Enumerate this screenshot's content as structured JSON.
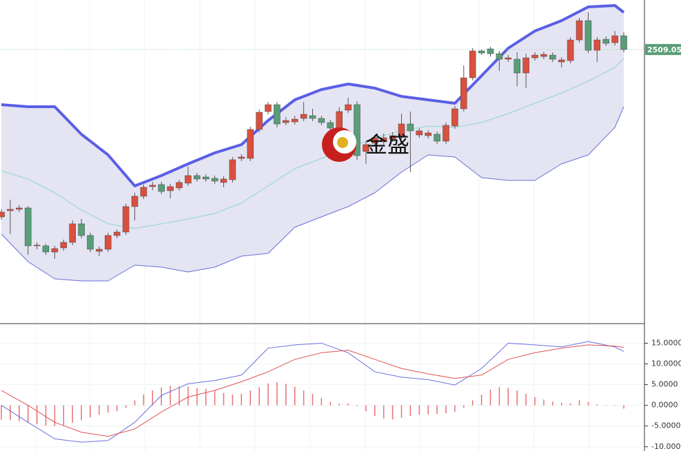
{
  "chart_data": [
    {
      "type": "candlestick",
      "up_color": "#d9503f",
      "down_color": "#5a9e78",
      "ylim": [
        2310,
        2545
      ],
      "price_label": {
        "value": 2509.05,
        "label": "2509.05"
      },
      "price_label_color": "#5a9e78",
      "watermark": "金盛",
      "candles": [
        [
          2387.5,
          2393,
          2385.5,
          2391
        ],
        [
          2392,
          2400,
          2375,
          2393
        ],
        [
          2393,
          2396,
          2391,
          2394
        ],
        [
          2394,
          2395.5,
          2360,
          2366.5
        ],
        [
          2366.5,
          2369,
          2364,
          2367
        ],
        [
          2366.5,
          2368,
          2360,
          2362
        ],
        [
          2362,
          2366.5,
          2357,
          2364.5
        ],
        [
          2365,
          2371,
          2363,
          2369
        ],
        [
          2369,
          2385,
          2367,
          2382.5
        ],
        [
          2382.5,
          2386,
          2372,
          2374
        ],
        [
          2374,
          2376,
          2362,
          2364
        ],
        [
          2362.5,
          2366,
          2359,
          2364
        ],
        [
          2364,
          2376,
          2362,
          2374
        ],
        [
          2374,
          2378.5,
          2372,
          2376.5
        ],
        [
          2376.5,
          2397,
          2374.5,
          2395
        ],
        [
          2395,
          2405,
          2385,
          2402.5
        ],
        [
          2402.5,
          2411,
          2400.5,
          2409
        ],
        [
          2409.5,
          2413,
          2407,
          2410.5
        ],
        [
          2411,
          2413,
          2404,
          2406
        ],
        [
          2406.5,
          2411.5,
          2401,
          2409.5
        ],
        [
          2408.5,
          2414.5,
          2406.5,
          2412.5
        ],
        [
          2412,
          2424,
          2410,
          2417.5
        ],
        [
          2417.5,
          2419.5,
          2413,
          2415
        ],
        [
          2416.5,
          2418.5,
          2413,
          2415
        ],
        [
          2415.5,
          2417.5,
          2411.5,
          2413.5
        ],
        [
          2412.5,
          2417,
          2409,
          2415
        ],
        [
          2414.5,
          2431,
          2412.5,
          2429
        ],
        [
          2430,
          2433,
          2428,
          2431
        ],
        [
          2430,
          2453,
          2428,
          2451
        ],
        [
          2451,
          2465.5,
          2449,
          2463.5
        ],
        [
          2464,
          2471,
          2462,
          2469
        ],
        [
          2469,
          2471,
          2452.5,
          2455
        ],
        [
          2456,
          2460,
          2454,
          2457.5
        ],
        [
          2456.5,
          2461,
          2454.5,
          2458.5
        ],
        [
          2459,
          2471,
          2457,
          2462
        ],
        [
          2461,
          2466,
          2457,
          2459
        ],
        [
          2459,
          2461,
          2454,
          2456
        ],
        [
          2456,
          2458,
          2450,
          2452
        ],
        [
          2452,
          2467,
          2450,
          2464
        ],
        [
          2465,
          2474,
          2463,
          2469
        ],
        [
          2469,
          2471.5,
          2429,
          2432
        ],
        [
          2435,
          2442,
          2426,
          2440
        ],
        [
          2441,
          2447,
          2439,
          2445
        ],
        [
          2442,
          2448,
          2440,
          2445
        ],
        [
          2444,
          2449,
          2442,
          2446.5
        ],
        [
          2446,
          2462.5,
          2444,
          2455
        ],
        [
          2455,
          2464,
          2420,
          2450
        ],
        [
          2447,
          2452,
          2445,
          2450
        ],
        [
          2446.5,
          2450.5,
          2444.5,
          2448.5
        ],
        [
          2447.5,
          2449.5,
          2440.5,
          2442.5
        ],
        [
          2442.5,
          2456,
          2440.5,
          2454
        ],
        [
          2453.5,
          2468,
          2451.5,
          2466
        ],
        [
          2466,
          2497.5,
          2464,
          2488.5
        ],
        [
          2488.5,
          2510,
          2486.5,
          2508
        ],
        [
          2508,
          2509,
          2505,
          2506.5
        ],
        [
          2509.5,
          2511,
          2504,
          2506
        ],
        [
          2506,
          2508,
          2493.5,
          2502
        ],
        [
          2502,
          2505,
          2500,
          2503
        ],
        [
          2502,
          2507,
          2482.5,
          2492
        ],
        [
          2492,
          2506,
          2481,
          2503
        ],
        [
          2503,
          2507,
          2501,
          2505
        ],
        [
          2504,
          2507.5,
          2502,
          2505.5
        ],
        [
          2505,
          2507,
          2500,
          2502
        ],
        [
          2500,
          2503.5,
          2496,
          2501.5
        ],
        [
          2501,
          2518,
          2499,
          2516
        ],
        [
          2516,
          2532,
          2514,
          2530
        ],
        [
          2530,
          2536,
          2506.5,
          2508.5
        ],
        [
          2508.5,
          2518,
          2500,
          2516
        ],
        [
          2516.5,
          2518.5,
          2511.5,
          2513.5
        ],
        [
          2514,
          2522.5,
          2512,
          2519
        ],
        [
          2519,
          2521.5,
          2507,
          2509.05
        ]
      ],
      "band_fill": "#e4e4f2",
      "series": [
        {
          "color": "#5a5ee6",
          "width": 4,
          "x": [
            0,
            3,
            6,
            9,
            12,
            15,
            18,
            21,
            24,
            27,
            30,
            33,
            36,
            39,
            42,
            45,
            48,
            51,
            54,
            57,
            60,
            63,
            66,
            69,
            70
          ],
          "values": [
            2469,
            2467.5,
            2467.5,
            2447.5,
            2432.5,
            2410,
            2417.5,
            2426,
            2434,
            2440,
            2457.5,
            2472.5,
            2480,
            2484,
            2481,
            2475,
            2472.5,
            2470,
            2490,
            2510,
            2522.5,
            2530,
            2540,
            2541,
            2536
          ]
        },
        {
          "color": "#8fd8c6",
          "width": 1,
          "x": [
            0,
            3,
            6,
            9,
            12,
            15,
            18,
            21,
            24,
            27,
            30,
            33,
            36,
            39,
            42,
            45,
            48,
            51,
            54,
            57,
            60,
            63,
            66,
            69,
            70
          ],
          "values": [
            2421,
            2415,
            2405,
            2392.5,
            2382.5,
            2379,
            2382.5,
            2386,
            2390,
            2397.5,
            2410,
            2422.5,
            2430,
            2437.5,
            2445,
            2450,
            2453.5,
            2452.5,
            2456,
            2462.5,
            2470,
            2477.5,
            2486,
            2496,
            2502.5
          ]
        },
        {
          "color": "#6a6ed8",
          "width": 1,
          "x": [
            0,
            3,
            6,
            9,
            12,
            15,
            18,
            21,
            24,
            27,
            30,
            33,
            36,
            39,
            42,
            45,
            48,
            51,
            54,
            57,
            60,
            63,
            66,
            69,
            70
          ],
          "values": [
            2375,
            2355,
            2342.5,
            2341,
            2341,
            2352.5,
            2351,
            2347.5,
            2351,
            2359,
            2361,
            2380,
            2387.5,
            2395,
            2405,
            2420,
            2432.5,
            2431,
            2416,
            2414,
            2414,
            2426,
            2432.5,
            2452.5,
            2467.5
          ]
        }
      ]
    },
    {
      "type": "macd",
      "ylim": [
        -10.2,
        19.4
      ],
      "yticks": [
        {
          "value": 15,
          "label": "15.0000"
        },
        {
          "value": 10,
          "label": "10.0000"
        },
        {
          "value": 5,
          "label": "5.0000"
        },
        {
          "value": 0,
          "label": "0.0000"
        },
        {
          "value": -5,
          "label": "-5.0000"
        },
        {
          "value": -10,
          "label": "-10.0000"
        }
      ],
      "grid": true,
      "histogram": {
        "color": "#e87070",
        "values": [
          -3.5,
          -3.6,
          -3.8,
          -4.2,
          -4.6,
          -4.9,
          -5.0,
          -4.8,
          -4.2,
          -3.6,
          -2.9,
          -2.3,
          -1.8,
          -1.4,
          -0.6,
          1.2,
          2.6,
          3.6,
          4.3,
          4.7,
          4.6,
          4.5,
          4.2,
          4.0,
          3.6,
          3.0,
          2.6,
          2.8,
          3.6,
          4.4,
          5.3,
          5.6,
          5.2,
          4.5,
          3.6,
          2.8,
          1.8,
          0.8,
          0.4,
          0.5,
          -0.2,
          -1.4,
          -2.6,
          -3.2,
          -3.4,
          -3.0,
          -2.6,
          -2.3,
          -2.2,
          -2.1,
          -1.9,
          -1.6,
          -0.6,
          1.2,
          2.6,
          3.8,
          4.4,
          4.2,
          3.6,
          2.8,
          2.0,
          1.4,
          0.9,
          0.6,
          0.5,
          1.2,
          0.8,
          0.3,
          0.1,
          -0.1,
          -0.8
        ]
      },
      "series": [
        {
          "color": "#6a6ee0",
          "x": [
            0,
            3,
            6,
            9,
            12,
            15,
            18,
            21,
            24,
            27,
            30,
            33,
            36,
            39,
            42,
            45,
            48,
            51,
            54,
            57,
            60,
            63,
            66,
            69,
            70
          ],
          "values": [
            0,
            -4.1,
            -8.1,
            -8.9,
            -8.5,
            -4.1,
            2.4,
            5.2,
            6.0,
            7.3,
            13.8,
            14.6,
            15.0,
            12.7,
            8.1,
            6.8,
            6.2,
            4.9,
            8.9,
            15.0,
            14.6,
            14.1,
            15.4,
            14.1,
            13.0
          ]
        },
        {
          "color": "#e05050",
          "x": [
            0,
            3,
            6,
            9,
            12,
            15,
            18,
            21,
            24,
            27,
            30,
            33,
            36,
            39,
            42,
            45,
            48,
            51,
            54,
            57,
            60,
            63,
            66,
            69,
            70
          ],
          "values": [
            3.6,
            0,
            -4.1,
            -6.5,
            -7.5,
            -5.7,
            -1.6,
            2.0,
            3.6,
            5.7,
            8.1,
            11.1,
            12.7,
            13.3,
            11.1,
            8.9,
            7.6,
            6.5,
            7.3,
            11.1,
            12.7,
            13.8,
            14.6,
            14.3,
            14.0
          ]
        }
      ]
    }
  ]
}
